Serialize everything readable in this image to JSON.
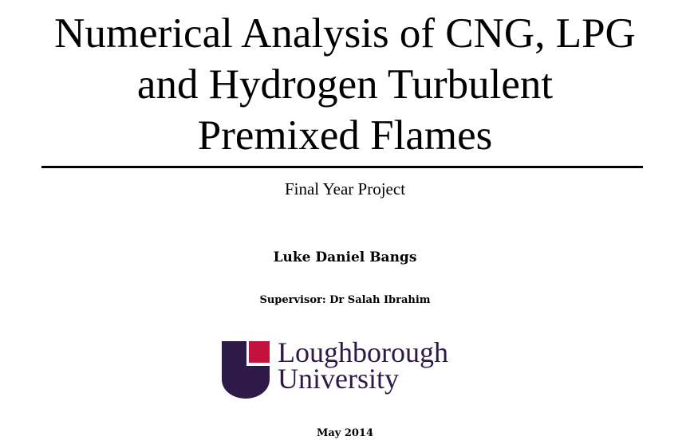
{
  "document": {
    "title_lines": [
      "Numerical Analysis of CNG, LPG",
      "and Hydrogen Turbulent",
      "Premixed Flames"
    ],
    "subtitle": "Final Year Project",
    "author": "Luke Daniel Bangs",
    "supervisor": "Supervisor: Dr Salah Ibrahim",
    "date": "May 2014"
  },
  "logo": {
    "name_lines": [
      "Loughborough",
      "University"
    ],
    "colors": {
      "shield": "#2e1a47",
      "square": "#c4123e",
      "text": "#2e1a47"
    }
  }
}
